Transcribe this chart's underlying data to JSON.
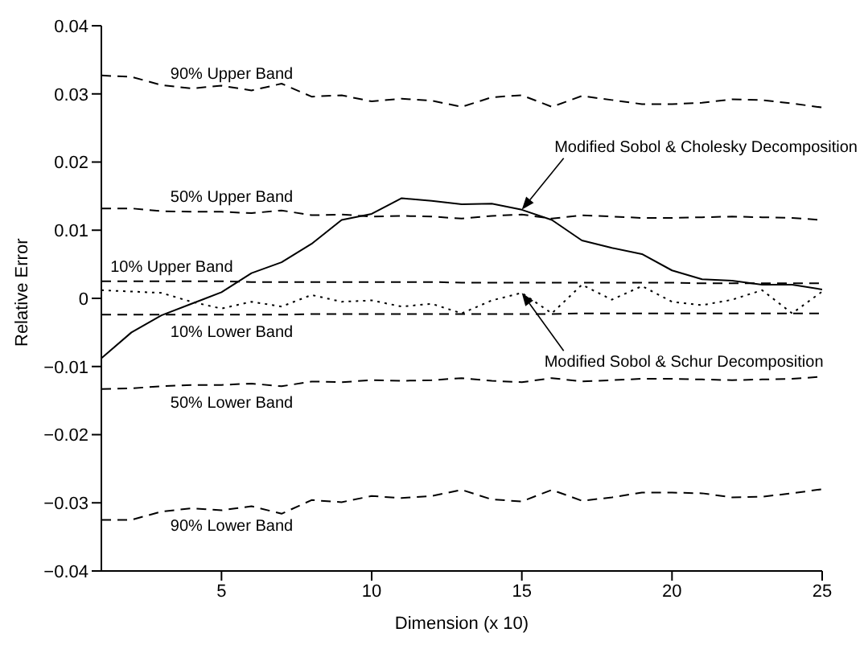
{
  "chart_data": {
    "type": "line",
    "xlabel": "Dimension (x 10)",
    "ylabel": "Relative Error",
    "x": [
      1,
      2,
      3,
      4,
      5,
      6,
      7,
      8,
      9,
      10,
      11,
      12,
      13,
      14,
      15,
      16,
      17,
      18,
      19,
      20,
      21,
      22,
      23,
      24,
      25
    ],
    "xlim": [
      1,
      25
    ],
    "xticks": [
      5,
      10,
      15,
      20,
      25
    ],
    "ylim": [
      -0.04,
      0.04
    ],
    "yticks": [
      {
        "value": -0.04,
        "label": "−0.04"
      },
      {
        "value": -0.03,
        "label": "−0.03"
      },
      {
        "value": -0.02,
        "label": "−0.02"
      },
      {
        "value": -0.01,
        "label": "−0.01"
      },
      0,
      0.01,
      0.02,
      0.03,
      0.04
    ],
    "series": [
      {
        "name": "Modified Sobol & Cholesky Decomposition",
        "color": "#000000",
        "line_style": "solid",
        "values": [
          -0.0088,
          -0.005,
          -0.0025,
          -0.0008,
          0.0009,
          0.0037,
          0.0053,
          0.008,
          0.0115,
          0.0124,
          0.0147,
          0.0143,
          0.0138,
          0.0139,
          0.013,
          0.0115,
          0.0085,
          0.0074,
          0.0065,
          0.0041,
          0.0028,
          0.0026,
          0.002,
          0.002,
          0.0013
        ]
      },
      {
        "name": "Modified Sobol & Schur Decomposition",
        "color": "#000000",
        "line_style": "dotted",
        "values": [
          0.0012,
          0.001,
          0.0008,
          -0.0005,
          -0.0015,
          -0.0005,
          -0.0012,
          0.0005,
          -0.0005,
          -0.0003,
          -0.0012,
          -0.0008,
          -0.0022,
          -0.0003,
          0.0008,
          -0.0022,
          0.002,
          -0.0002,
          0.0018,
          -0.0005,
          -0.001,
          -0.0002,
          0.0012,
          -0.0022,
          0.001
        ]
      },
      {
        "name": "90% Upper Band",
        "color": "#000000",
        "line_style": "dashed",
        "values": [
          0.0327,
          0.0325,
          0.0313,
          0.0308,
          0.0312,
          0.0305,
          0.0315,
          0.0296,
          0.0298,
          0.0289,
          0.0293,
          0.029,
          0.0281,
          0.0295,
          0.0298,
          0.0281,
          0.0297,
          0.0291,
          0.0285,
          0.0285,
          0.0287,
          0.0292,
          0.0291,
          0.0286,
          0.028
        ]
      },
      {
        "name": "50% Upper Band",
        "color": "#000000",
        "line_style": "dashed",
        "values": [
          0.0132,
          0.0132,
          0.0128,
          0.0127,
          0.0127,
          0.0125,
          0.0129,
          0.0122,
          0.0123,
          0.012,
          0.0121,
          0.012,
          0.0117,
          0.0121,
          0.0123,
          0.0117,
          0.0122,
          0.012,
          0.0118,
          0.0118,
          0.0119,
          0.012,
          0.0119,
          0.0118,
          0.0115
        ]
      },
      {
        "name": "10% Upper Band",
        "color": "#000000",
        "line_style": "dashed",
        "values": [
          0.0025,
          0.0025,
          0.0025,
          0.0025,
          0.0025,
          0.0024,
          0.0024,
          0.0024,
          0.0024,
          0.0024,
          0.0024,
          0.0024,
          0.0023,
          0.0023,
          0.0023,
          0.0023,
          0.0023,
          0.0023,
          0.0023,
          0.0023,
          0.0022,
          0.0022,
          0.0022,
          0.0022,
          0.0022
        ]
      },
      {
        "name": "10% Lower Band",
        "color": "#000000",
        "line_style": "dashed",
        "values": [
          -0.0024,
          -0.0024,
          -0.0024,
          -0.0024,
          -0.0024,
          -0.0024,
          -0.0024,
          -0.0023,
          -0.0023,
          -0.0023,
          -0.0023,
          -0.0023,
          -0.0023,
          -0.0023,
          -0.0023,
          -0.0023,
          -0.0022,
          -0.0022,
          -0.0022,
          -0.0022,
          -0.0022,
          -0.0022,
          -0.0022,
          -0.0022,
          -0.0022
        ]
      },
      {
        "name": "50% Lower Band",
        "color": "#000000",
        "line_style": "dashed",
        "values": [
          -0.0133,
          -0.0132,
          -0.0129,
          -0.0127,
          -0.0127,
          -0.0125,
          -0.0129,
          -0.0122,
          -0.0123,
          -0.012,
          -0.0121,
          -0.012,
          -0.0117,
          -0.0121,
          -0.0123,
          -0.0117,
          -0.0122,
          -0.012,
          -0.0118,
          -0.0118,
          -0.0119,
          -0.012,
          -0.0119,
          -0.0118,
          -0.0115
        ]
      },
      {
        "name": "90% Lower Band",
        "color": "#000000",
        "line_style": "dashed",
        "values": [
          -0.0325,
          -0.0325,
          -0.0313,
          -0.0308,
          -0.0311,
          -0.0305,
          -0.0316,
          -0.0296,
          -0.0299,
          -0.029,
          -0.0293,
          -0.029,
          -0.0281,
          -0.0295,
          -0.0298,
          -0.0281,
          -0.0297,
          -0.0292,
          -0.0285,
          -0.0285,
          -0.0286,
          -0.0292,
          -0.0291,
          -0.0286,
          -0.028
        ]
      }
    ]
  }
}
